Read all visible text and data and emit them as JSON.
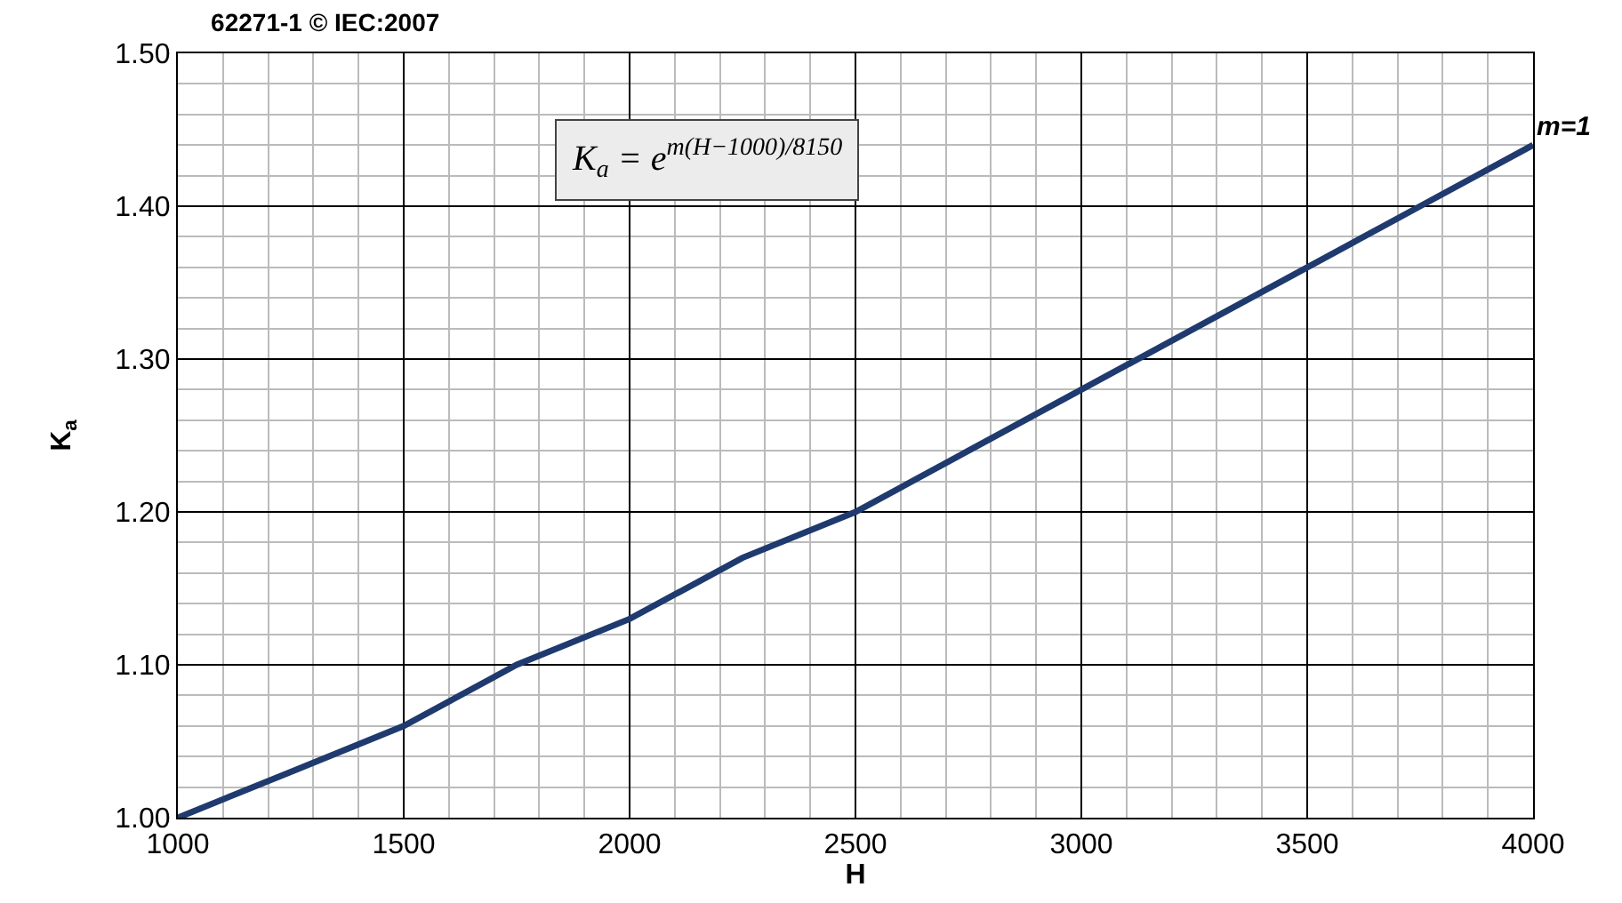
{
  "chart_data": {
    "type": "line",
    "title": "62271-1 © IEC:2007",
    "xlabel": "H",
    "ylabel": "K$_{a}$",
    "x": [
      1000,
      1250,
      1500,
      1750,
      2000,
      2250,
      2500,
      2750,
      3000,
      3250,
      3500,
      3750,
      4000
    ],
    "series": [
      {
        "name": "m=1",
        "color": "#1f3a6e",
        "values": [
          1.0,
          1.03,
          1.06,
          1.1,
          1.13,
          1.17,
          1.2,
          1.24,
          1.28,
          1.32,
          1.36,
          1.4,
          1.44
        ]
      }
    ],
    "xlim": [
      1000,
      4000
    ],
    "xticks": [
      1000,
      1500,
      2000,
      2500,
      3000,
      3500,
      4000
    ],
    "ylim": [
      1.0,
      1.5
    ],
    "yticks": [
      {
        "value": 1.0,
        "label": "1.00"
      },
      {
        "value": 1.1,
        "label": "1.10"
      },
      {
        "value": 1.2,
        "label": "1.20"
      },
      {
        "value": 1.3,
        "label": "1.30"
      },
      {
        "value": 1.4,
        "label": "1.40"
      },
      {
        "value": 1.5,
        "label": "1.50"
      }
    ],
    "annotations": [
      "K$_{a}$ = e$^{m(H−1000)/8150}$"
    ],
    "grid": true,
    "legend": false,
    "line_style": "solid",
    "marker": "none"
  }
}
